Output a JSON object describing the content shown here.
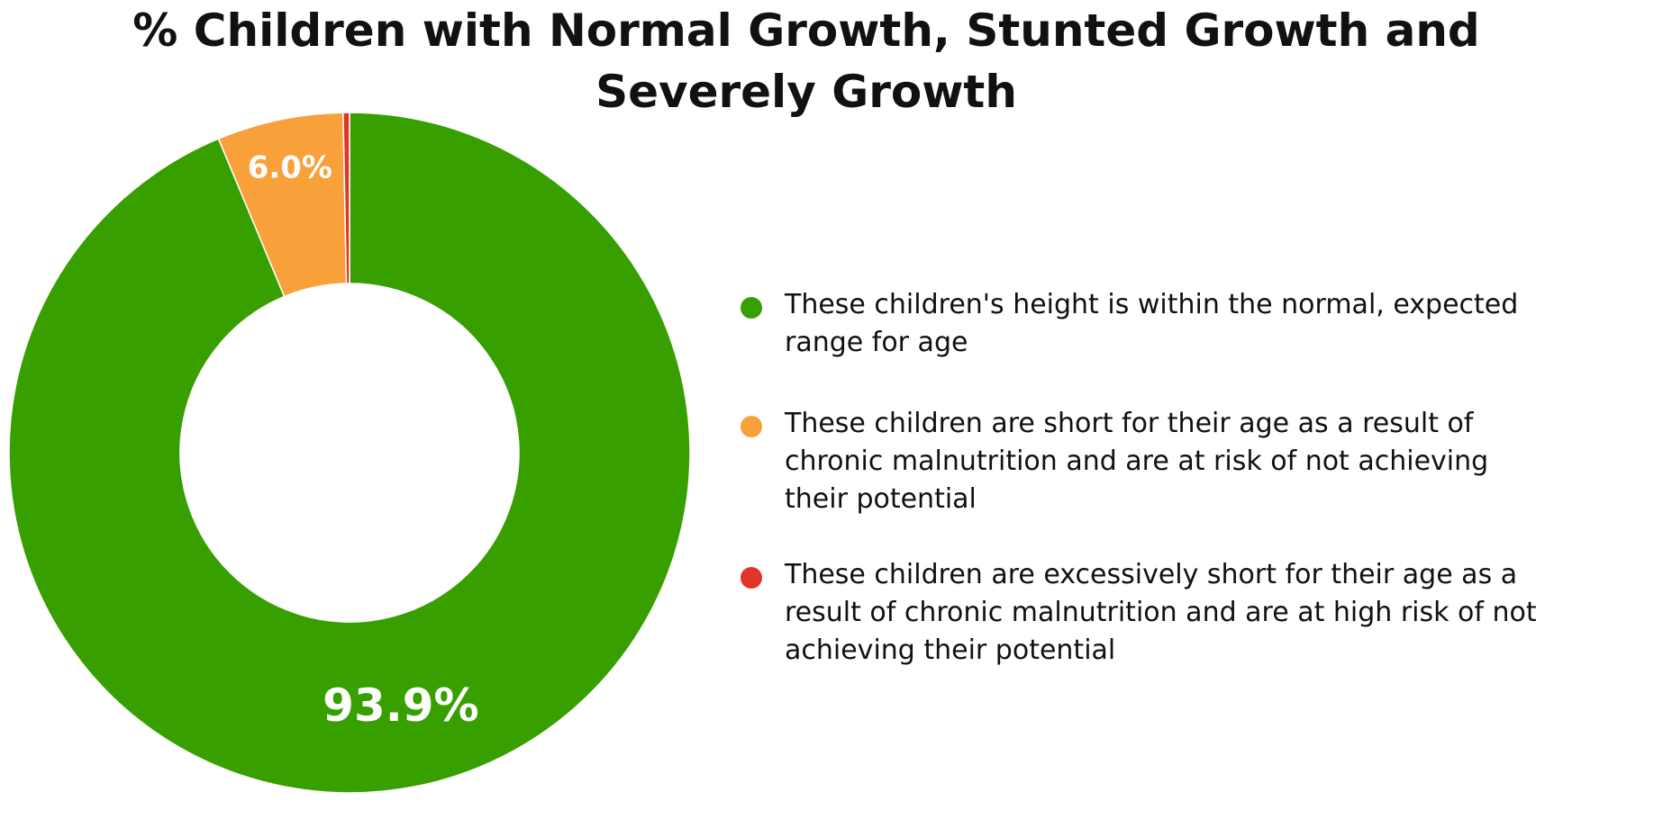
{
  "chart_data": {
    "type": "pie",
    "title": "% Children with Normal Growth, Stunted Growth and Severely Growth",
    "title_lines": [
      "% Children with Normal Growth, Stunted Growth and",
      "Severely Growth"
    ],
    "donut": true,
    "slices": [
      {
        "label": "These children's height is within the normal, expected range for age",
        "value": 93.9,
        "display": "93.9%",
        "color": "#389f00"
      },
      {
        "label": "These children are short for their age as a result of chronic malnutrition and are at risk of not achieving their potential",
        "value": 6.0,
        "display": "6.0%",
        "color": "#f8a13b"
      },
      {
        "label": "These children are excessively short for their age as a result of chronic malnutrition and are at high risk of not achieving their potential",
        "value": 0.3,
        "display": "",
        "color": "#e03527"
      }
    ],
    "legend_position": "right"
  }
}
